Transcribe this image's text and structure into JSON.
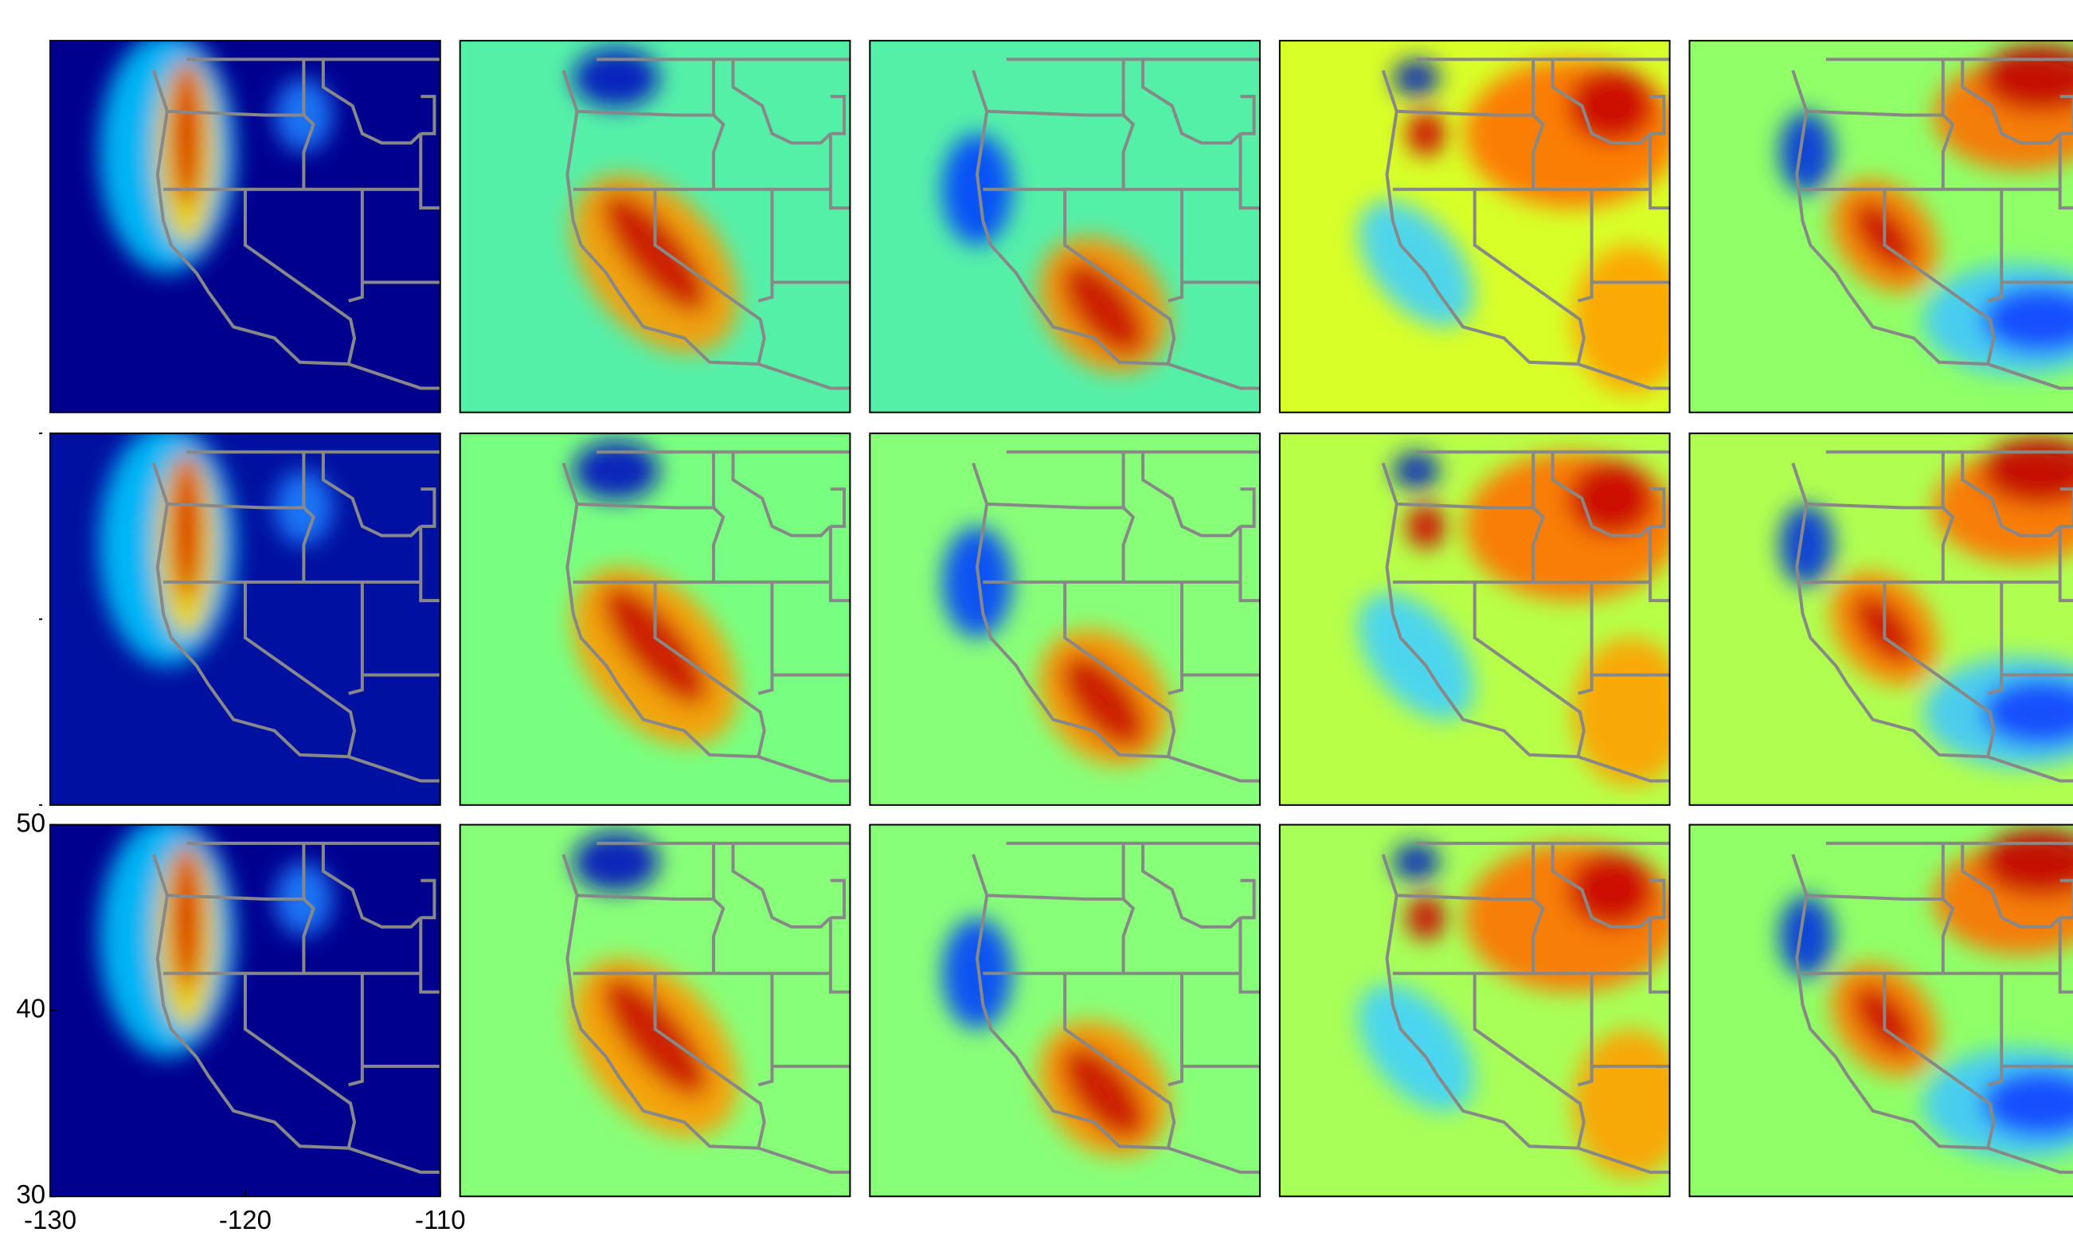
{
  "chart_data": {
    "type": "heatmap-map-grid",
    "xlim": [
      -130,
      -110
    ],
    "ylim": [
      30,
      50
    ],
    "xticks": [
      -130,
      -120,
      -110
    ],
    "yticks": [
      30,
      40,
      50
    ]
  }
}
